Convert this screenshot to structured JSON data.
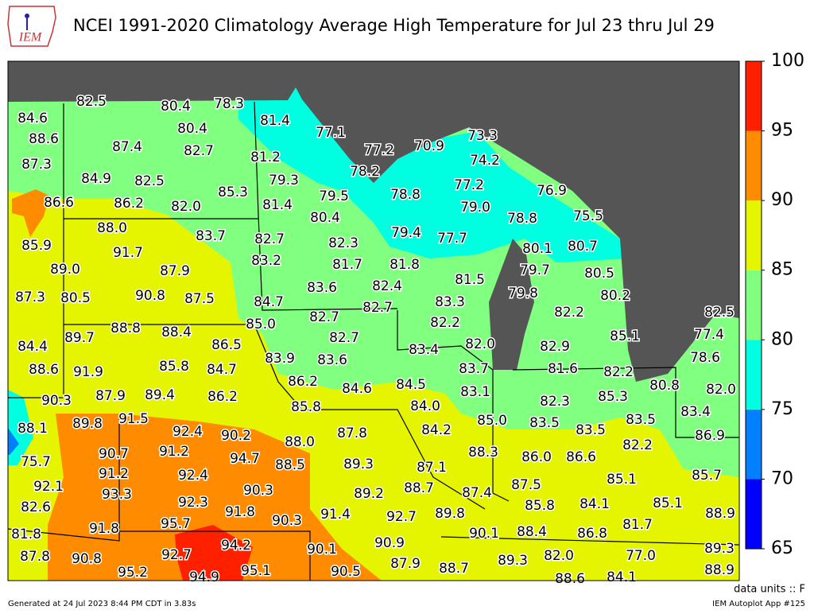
{
  "logo_text": "IEM",
  "title": "NCEI 1991-2020 Climatology Average High Temperature for Jul 23 thru Jul 29",
  "stations": [
    82.5,
    80.4,
    78.3,
    84.6,
    81.4,
    77.1,
    73.3,
    88.6,
    80.4,
    77.2,
    70.9,
    87.4,
    82.7,
    81.2,
    74.2,
    87.3,
    78.2,
    84.9,
    82.5,
    79.3,
    77.2,
    76.9,
    85.3,
    79.5,
    78.8,
    86.6,
    86.2,
    {
      "value": 82,
      "label": "82.0"
    },
    81.4,
    {
      "value": 79,
      "label": "79.0"
    },
    75.5,
    80.4,
    78.8,
    {
      "value": 88,
      "label": "88.0"
    },
    83.7,
    79.4,
    77.7,
    85.9,
    82.7,
    82.3,
    80.1,
    80.7,
    91.7,
    83.2,
    81.7,
    81.8,
    {
      "value": 89,
      "label": "89.0"
    },
    87.9,
    79.7,
    80.5,
    83.6,
    82.4,
    81.5,
    87.3,
    80.5,
    90.8,
    87.5,
    84.7,
    83.3,
    79.8,
    80.2,
    82.7,
    82.2,
    82.5,
    82.7,
    {
      "value": 85,
      "label": "85.0"
    },
    82.2,
    88.8,
    88.4,
    85.1,
    77.4,
    89.7,
    82.7,
    84.4,
    86.5,
    83.4,
    {
      "value": 82,
      "label": "82.0"
    },
    82.9,
    83.9,
    83.6,
    78.6,
    88.6,
    91.9,
    85.8,
    84.7,
    83.7,
    81.6,
    82.2,
    86.2,
    84.5,
    84.6,
    80.8,
    {
      "value": 82,
      "label": "82.0"
    },
    90.3,
    87.9,
    89.4,
    86.2,
    83.1,
    82.3,
    85.3,
    85.8,
    {
      "value": 84,
      "label": "84.0"
    },
    91.5,
    89.8,
    {
      "value": 85,
      "label": "85.0"
    },
    83.5,
    83.5,
    83.4,
    88.1,
    92.4,
    90.2,
    84.2,
    87.8,
    83.5,
    {
      "value": 88,
      "label": "88.0"
    },
    86.9,
    90.7,
    91.2,
    94.7,
    82.2,
    88.3,
    {
      "value": 86,
      "label": "86.0"
    },
    86.6,
    75.7,
    88.5,
    89.3,
    87.1,
    91.2,
    92.4,
    85.7,
    85.1,
    92.1,
    90.3,
    89.2,
    88.7,
    87.5,
    87.4,
    93.3,
    84.1,
    85.1,
    92.3,
    91.8,
    85.8,
    82.6,
    91.4,
    92.7,
    89.8,
    88.9,
    90.3,
    95.7,
    91.8,
    81.7,
    90.1,
    88.4,
    86.8,
    81.8,
    94.2,
    90.9,
    89.3,
    90.1,
    {
      "value": 77,
      "label": "77.0"
    },
    87.8,
    90.8,
    92.7,
    89.3,
    {
      "value": 82,
      "label": "82.0"
    },
    87.9,
    88.7,
    95.2,
    95.1,
    90.5,
    88.9,
    94.9,
    88.6,
    84.1
  ],
  "colorbar": {
    "levels": [
      65,
      70,
      75,
      80,
      85,
      90,
      95,
      100
    ],
    "colors": [
      "#0000ff",
      "#0080ff",
      "#00ffe0",
      "#80ff80",
      "#e5f500",
      "#ff8c00",
      "#ff2000"
    ]
  },
  "units_label": "data units :: F",
  "footer_left": "Generated at 24 Jul 2023 8:44 PM CDT in 3.83s",
  "footer_right": "IEM Autoplot App #125"
}
